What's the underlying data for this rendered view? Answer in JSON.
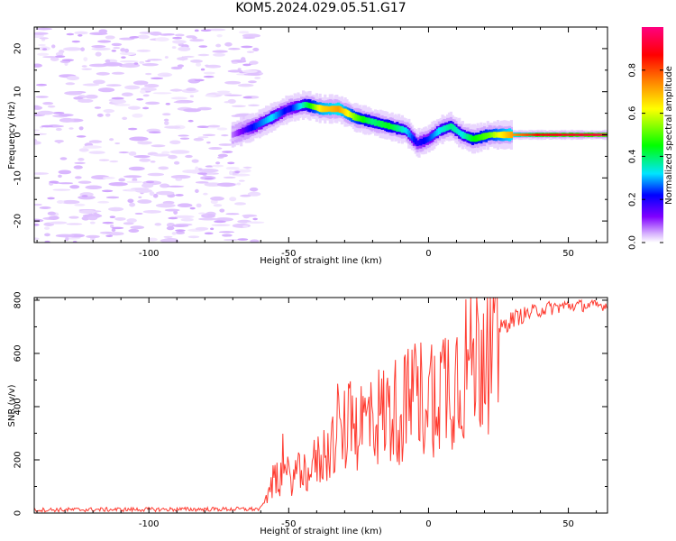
{
  "title": "KOM5.2024.029.05.51.G17",
  "chart_data": [
    {
      "type": "heatmap",
      "xlabel": "Height of straight line (km)",
      "ylabel": "Frequency (Hz)",
      "xlim": [
        -141,
        64
      ],
      "ylim": [
        -25,
        25
      ],
      "xticks": [
        -100,
        -50,
        0,
        50
      ],
      "yticks": [
        -20,
        -10,
        0,
        10,
        20
      ],
      "colorbar": {
        "label": "Normalized spectral amplitude",
        "range": [
          0,
          1
        ],
        "ticks": [
          0.0,
          0.2,
          0.4,
          0.6,
          0.8
        ],
        "colormap": [
          "#ffffff",
          "#d8b4fe",
          "#8000ff",
          "#0000ff",
          "#00e5ff",
          "#00ff00",
          "#ffff00",
          "#ff8000",
          "#ff0000",
          "#ff0080"
        ]
      },
      "ridge": {
        "x": [
          -70,
          -62,
          -56,
          -50,
          -44,
          -38,
          -32,
          -26,
          -20,
          -14,
          -8,
          -4,
          0,
          4,
          8,
          12,
          16,
          22,
          30,
          40,
          64
        ],
        "y": [
          0,
          2,
          4,
          6,
          7,
          6,
          6,
          4,
          3,
          2,
          1,
          -2,
          -1,
          1,
          2,
          0,
          -1,
          0,
          0,
          0,
          0
        ],
        "amplitude": [
          0.15,
          0.35,
          0.45,
          0.3,
          0.5,
          0.7,
          0.75,
          0.6,
          0.5,
          0.55,
          0.45,
          0.3,
          0.35,
          0.45,
          0.5,
          0.45,
          0.55,
          0.6,
          0.75,
          0.9,
          0.95
        ]
      }
    },
    {
      "type": "line",
      "xlabel": "Height of straight line (km)",
      "ylabel": "SNR (v/v)",
      "xlim": [
        -141,
        64
      ],
      "ylim": [
        0,
        810
      ],
      "xticks": [
        -100,
        -50,
        0,
        50
      ],
      "yticks": [
        0,
        200,
        400,
        600,
        800
      ],
      "color": "#ff3b30",
      "envelope": {
        "x": [
          -141,
          -60,
          -55,
          -45,
          -40,
          -30,
          -20,
          -10,
          0,
          10,
          20,
          30,
          40,
          50,
          64
        ],
        "y": [
          12,
          15,
          130,
          150,
          190,
          310,
          360,
          390,
          450,
          520,
          640,
          730,
          765,
          780,
          780
        ]
      }
    }
  ]
}
